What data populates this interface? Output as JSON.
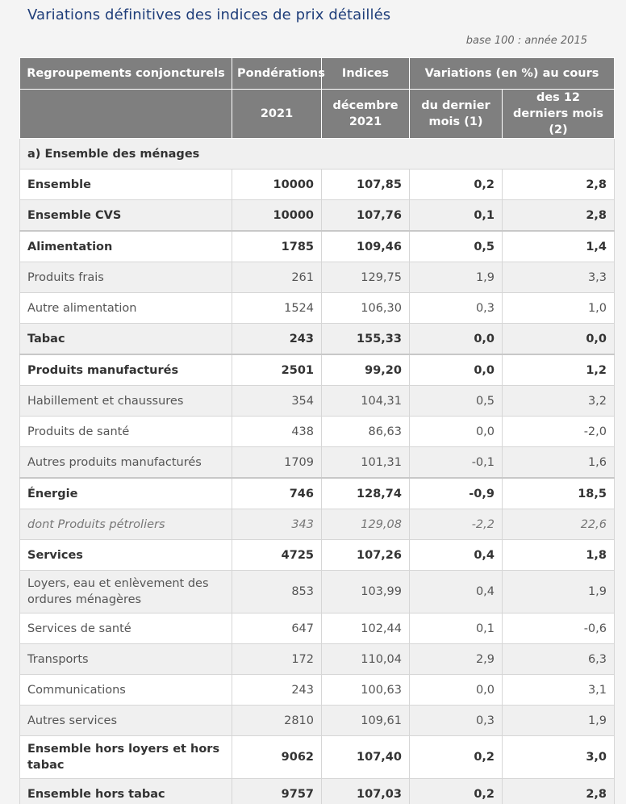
{
  "title": "Variations définitives des indices de prix détaillés",
  "base_note": "base 100 : année 2015",
  "header": {
    "col1": "Regroupements conjoncturels",
    "col2": "Pondérations",
    "col3": "Indices",
    "col45": "Variations (en %) au cours",
    "sub2": "2021",
    "sub3": "décembre 2021",
    "sub4": "du dernier mois (1)",
    "sub5": "des 12 derniers mois (2)"
  },
  "section_a": "a) Ensemble des ménages",
  "rows": [
    {
      "label": "Ensemble",
      "weight": "10000",
      "index": "107,85",
      "m1": "0,2",
      "m12": "2,8"
    },
    {
      "label": "Ensemble CVS",
      "weight": "10000",
      "index": "107,76",
      "m1": "0,1",
      "m12": "2,8"
    },
    {
      "label": "Alimentation",
      "weight": "1785",
      "index": "109,46",
      "m1": "0,5",
      "m12": "1,4"
    },
    {
      "label": "Produits frais",
      "weight": "261",
      "index": "129,75",
      "m1": "1,9",
      "m12": "3,3"
    },
    {
      "label": "Autre alimentation",
      "weight": "1524",
      "index": "106,30",
      "m1": "0,3",
      "m12": "1,0"
    },
    {
      "label": "Tabac",
      "weight": "243",
      "index": "155,33",
      "m1": "0,0",
      "m12": "0,0"
    },
    {
      "label": "Produits manufacturés",
      "weight": "2501",
      "index": "99,20",
      "m1": "0,0",
      "m12": "1,2"
    },
    {
      "label": "Habillement et chaussures",
      "weight": "354",
      "index": "104,31",
      "m1": "0,5",
      "m12": "3,2"
    },
    {
      "label": "Produits de santé",
      "weight": "438",
      "index": "86,63",
      "m1": "0,0",
      "m12": "-2,0"
    },
    {
      "label": "Autres produits manufacturés",
      "weight": "1709",
      "index": "101,31",
      "m1": "-0,1",
      "m12": "1,6"
    },
    {
      "label": "Énergie",
      "weight": "746",
      "index": "128,74",
      "m1": "-0,9",
      "m12": "18,5"
    },
    {
      "label": "dont Produits pétroliers",
      "weight": "343",
      "index": "129,08",
      "m1": "-2,2",
      "m12": "22,6"
    },
    {
      "label": "Services",
      "weight": "4725",
      "index": "107,26",
      "m1": "0,4",
      "m12": "1,8"
    },
    {
      "label": "Loyers, eau et enlèvement des ordures ménagères",
      "weight": "853",
      "index": "103,99",
      "m1": "0,4",
      "m12": "1,9"
    },
    {
      "label": "Services de santé",
      "weight": "647",
      "index": "102,44",
      "m1": "0,1",
      "m12": "-0,6"
    },
    {
      "label": "Transports",
      "weight": "172",
      "index": "110,04",
      "m1": "2,9",
      "m12": "6,3"
    },
    {
      "label": "Communications",
      "weight": "243",
      "index": "100,63",
      "m1": "0,0",
      "m12": "3,1"
    },
    {
      "label": "Autres services",
      "weight": "2810",
      "index": "109,61",
      "m1": "0,3",
      "m12": "1,9"
    },
    {
      "label": "Ensemble hors loyers et hors tabac",
      "weight": "9062",
      "index": "107,40",
      "m1": "0,2",
      "m12": "3,0"
    },
    {
      "label": "Ensemble hors tabac",
      "weight": "9757",
      "index": "107,03",
      "m1": "0,2",
      "m12": "2,8"
    }
  ]
}
